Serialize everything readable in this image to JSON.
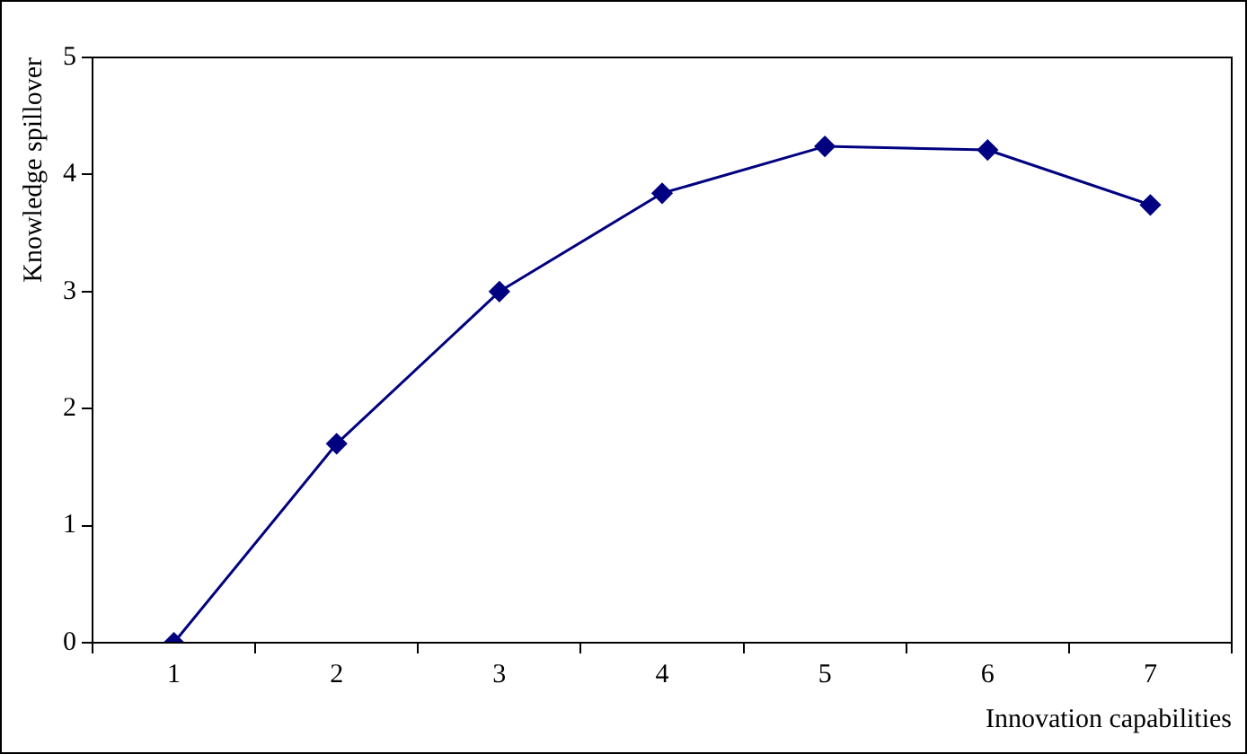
{
  "chart_data": {
    "type": "line",
    "xlabel": "Innovation capabilities",
    "ylabel": "Knowledge spillover",
    "categories": [
      "1",
      "2",
      "3",
      "4",
      "5",
      "6",
      "7"
    ],
    "series": [
      {
        "color": "#000080",
        "values": [
          0,
          1.7,
          3.0,
          3.84,
          4.24,
          4.21,
          3.74
        ]
      }
    ],
    "ylim": [
      0,
      5
    ],
    "yticks": [
      0,
      1,
      2,
      3,
      4,
      5
    ],
    "grid": false,
    "legend": false,
    "marker": "diamond",
    "line_style": "solid"
  }
}
